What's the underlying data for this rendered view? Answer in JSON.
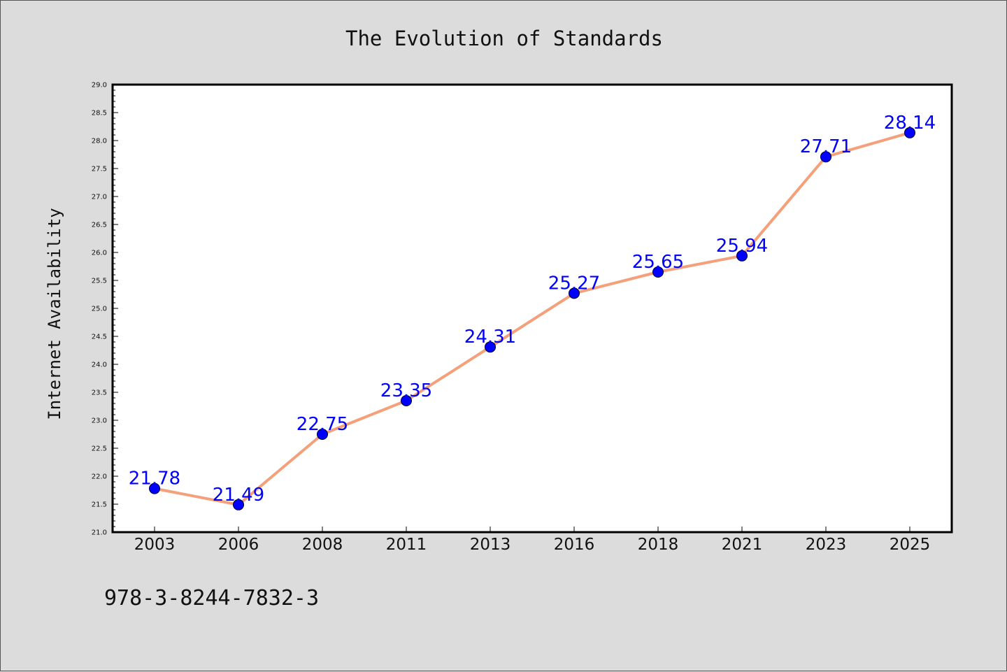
{
  "chart_data": {
    "type": "line",
    "title": "The Evolution of Standards",
    "xlabel": "",
    "ylabel": "Internet Availability",
    "categories": [
      "2003",
      "2006",
      "2008",
      "2011",
      "2013",
      "2016",
      "2018",
      "2021",
      "2023",
      "2025"
    ],
    "series": [
      {
        "values": [
          21.78,
          21.49,
          22.75,
          23.35,
          24.31,
          25.27,
          25.65,
          25.94,
          27.71,
          28.14
        ],
        "line_color": "#f4a07a",
        "marker_color": "#0000ff"
      }
    ],
    "data_labels": [
      "21.78",
      "21.49",
      "22.75",
      "23.35",
      "24.31",
      "25.27",
      "25.65",
      "25.94",
      "27.71",
      "28.14"
    ],
    "ylim": [
      21.0,
      29.0
    ],
    "yticks": [
      "21.0",
      "21.5",
      "22.0",
      "22.5",
      "23.0",
      "23.5",
      "24.0",
      "24.5",
      "25.0",
      "25.5",
      "26.0",
      "26.5",
      "27.0",
      "27.5",
      "28.0",
      "28.5",
      "29.0"
    ],
    "grid": false,
    "legend": "none"
  },
  "footer": {
    "isbn": "978-3-8244-7832-3"
  },
  "colors": {
    "background": "#dcdcdc",
    "plot_background": "#ffffff",
    "line": "#f4a07a",
    "marker": "#0000ff",
    "data_label": "#0000ff"
  }
}
